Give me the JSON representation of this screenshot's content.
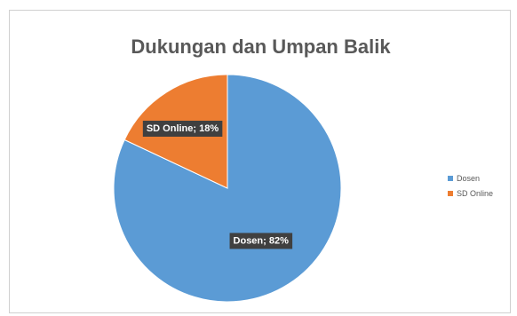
{
  "chart_data": {
    "type": "pie",
    "title": "Dukungan dan Umpan Balik",
    "categories": [
      "Dosen",
      "SD Online"
    ],
    "values": [
      82,
      18
    ],
    "data_labels": [
      "Dosen; 82%",
      "SD Online; 18%"
    ],
    "colors": [
      "#5b9bd5",
      "#ed7d31"
    ],
    "legend_position": "right",
    "start_angle_deg": 0,
    "direction": "clockwise"
  }
}
